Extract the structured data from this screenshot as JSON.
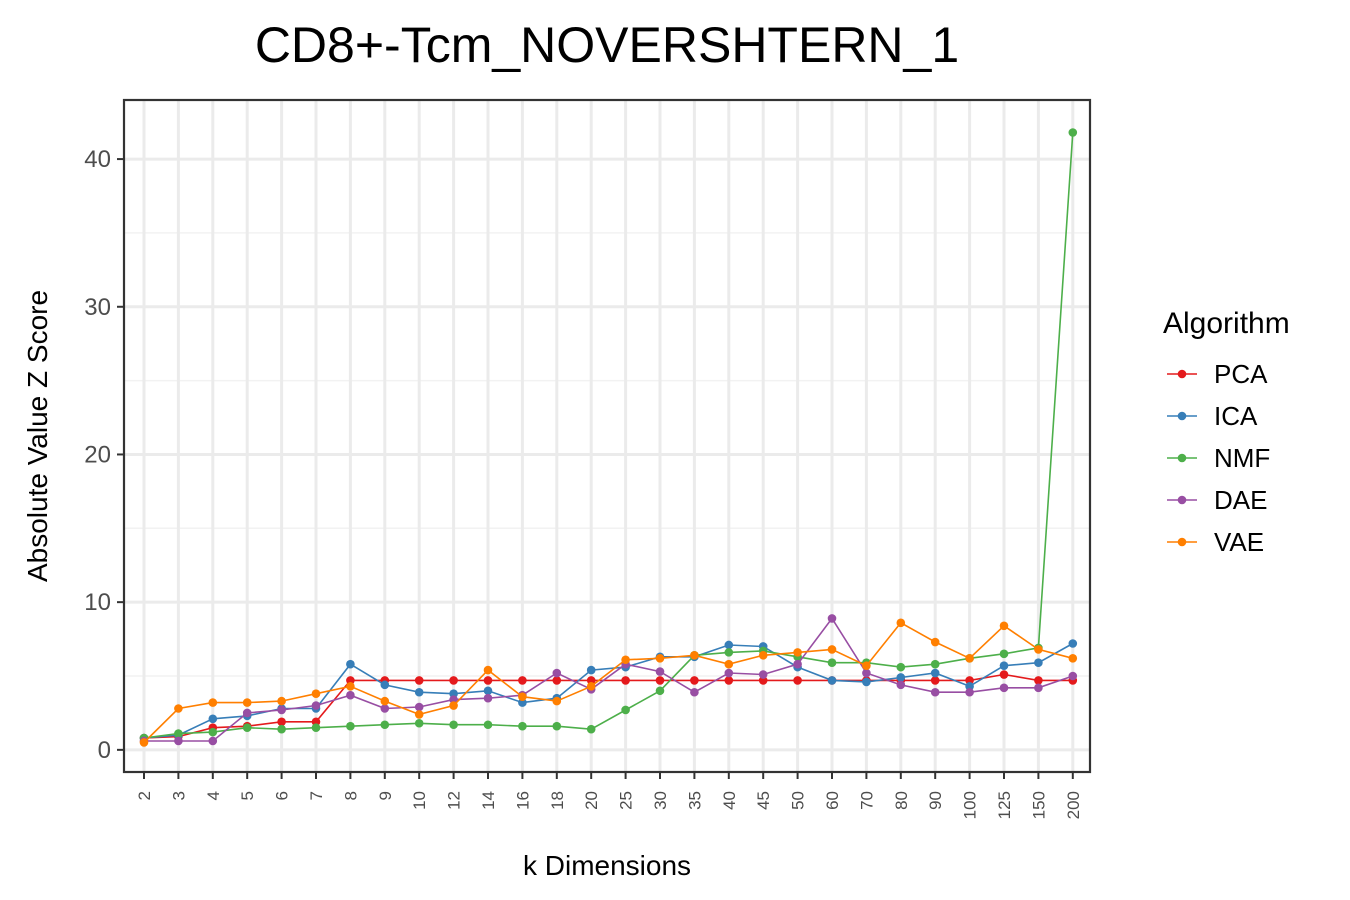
{
  "chart_data": {
    "type": "line",
    "title": "CD8+-Tcm_NOVERSHTERN_1",
    "xlabel": "k Dimensions",
    "ylabel": "Absolute Value Z Score",
    "categories": [
      "2",
      "3",
      "4",
      "5",
      "6",
      "7",
      "8",
      "9",
      "10",
      "12",
      "14",
      "16",
      "18",
      "20",
      "25",
      "30",
      "35",
      "40",
      "45",
      "50",
      "60",
      "70",
      "80",
      "90",
      "100",
      "125",
      "150",
      "200"
    ],
    "y_ticks": [
      0,
      10,
      20,
      30,
      40
    ],
    "ylim": [
      -1.5,
      44
    ],
    "grid": true,
    "legend": {
      "title": "Algorithm",
      "position": "right"
    },
    "series": [
      {
        "name": "PCA",
        "color": "#E41A1C",
        "values": [
          0.8,
          0.9,
          1.5,
          1.6,
          1.9,
          1.9,
          4.7,
          4.7,
          4.7,
          4.7,
          4.7,
          4.7,
          4.7,
          4.7,
          4.7,
          4.7,
          4.7,
          4.7,
          4.7,
          4.7,
          4.7,
          4.7,
          4.7,
          4.7,
          4.7,
          5.1,
          4.7,
          4.7
        ]
      },
      {
        "name": "ICA",
        "color": "#377EB8",
        "values": [
          0.8,
          1.0,
          2.1,
          2.3,
          2.8,
          2.8,
          5.8,
          4.4,
          3.9,
          3.8,
          4.0,
          3.2,
          3.5,
          5.4,
          5.6,
          6.3,
          6.3,
          7.1,
          7.0,
          5.6,
          4.7,
          4.6,
          4.9,
          5.2,
          4.3,
          5.7,
          5.9,
          7.2
        ]
      },
      {
        "name": "NMF",
        "color": "#4DAF4A",
        "values": [
          0.8,
          1.1,
          1.2,
          1.5,
          1.4,
          1.5,
          1.6,
          1.7,
          1.8,
          1.7,
          1.7,
          1.6,
          1.6,
          1.4,
          2.7,
          4.0,
          6.4,
          6.6,
          6.7,
          6.3,
          5.9,
          5.9,
          5.6,
          5.8,
          6.2,
          6.5,
          6.9,
          41.8
        ]
      },
      {
        "name": "DAE",
        "color": "#984EA3",
        "values": [
          0.6,
          0.6,
          0.6,
          2.5,
          2.7,
          3.0,
          3.7,
          2.8,
          2.9,
          3.4,
          3.5,
          3.7,
          5.2,
          4.1,
          5.8,
          5.3,
          3.9,
          5.2,
          5.1,
          5.8,
          8.9,
          5.2,
          4.4,
          3.9,
          3.9,
          4.2,
          4.2,
          5.0
        ]
      },
      {
        "name": "VAE",
        "color": "#FF7F00",
        "values": [
          0.5,
          2.8,
          3.2,
          3.2,
          3.3,
          3.8,
          4.3,
          3.3,
          2.4,
          3.0,
          5.4,
          3.6,
          3.3,
          4.3,
          6.1,
          6.2,
          6.4,
          5.8,
          6.4,
          6.6,
          6.8,
          5.7,
          8.6,
          7.3,
          6.2,
          8.4,
          6.8,
          6.2
        ]
      }
    ]
  }
}
